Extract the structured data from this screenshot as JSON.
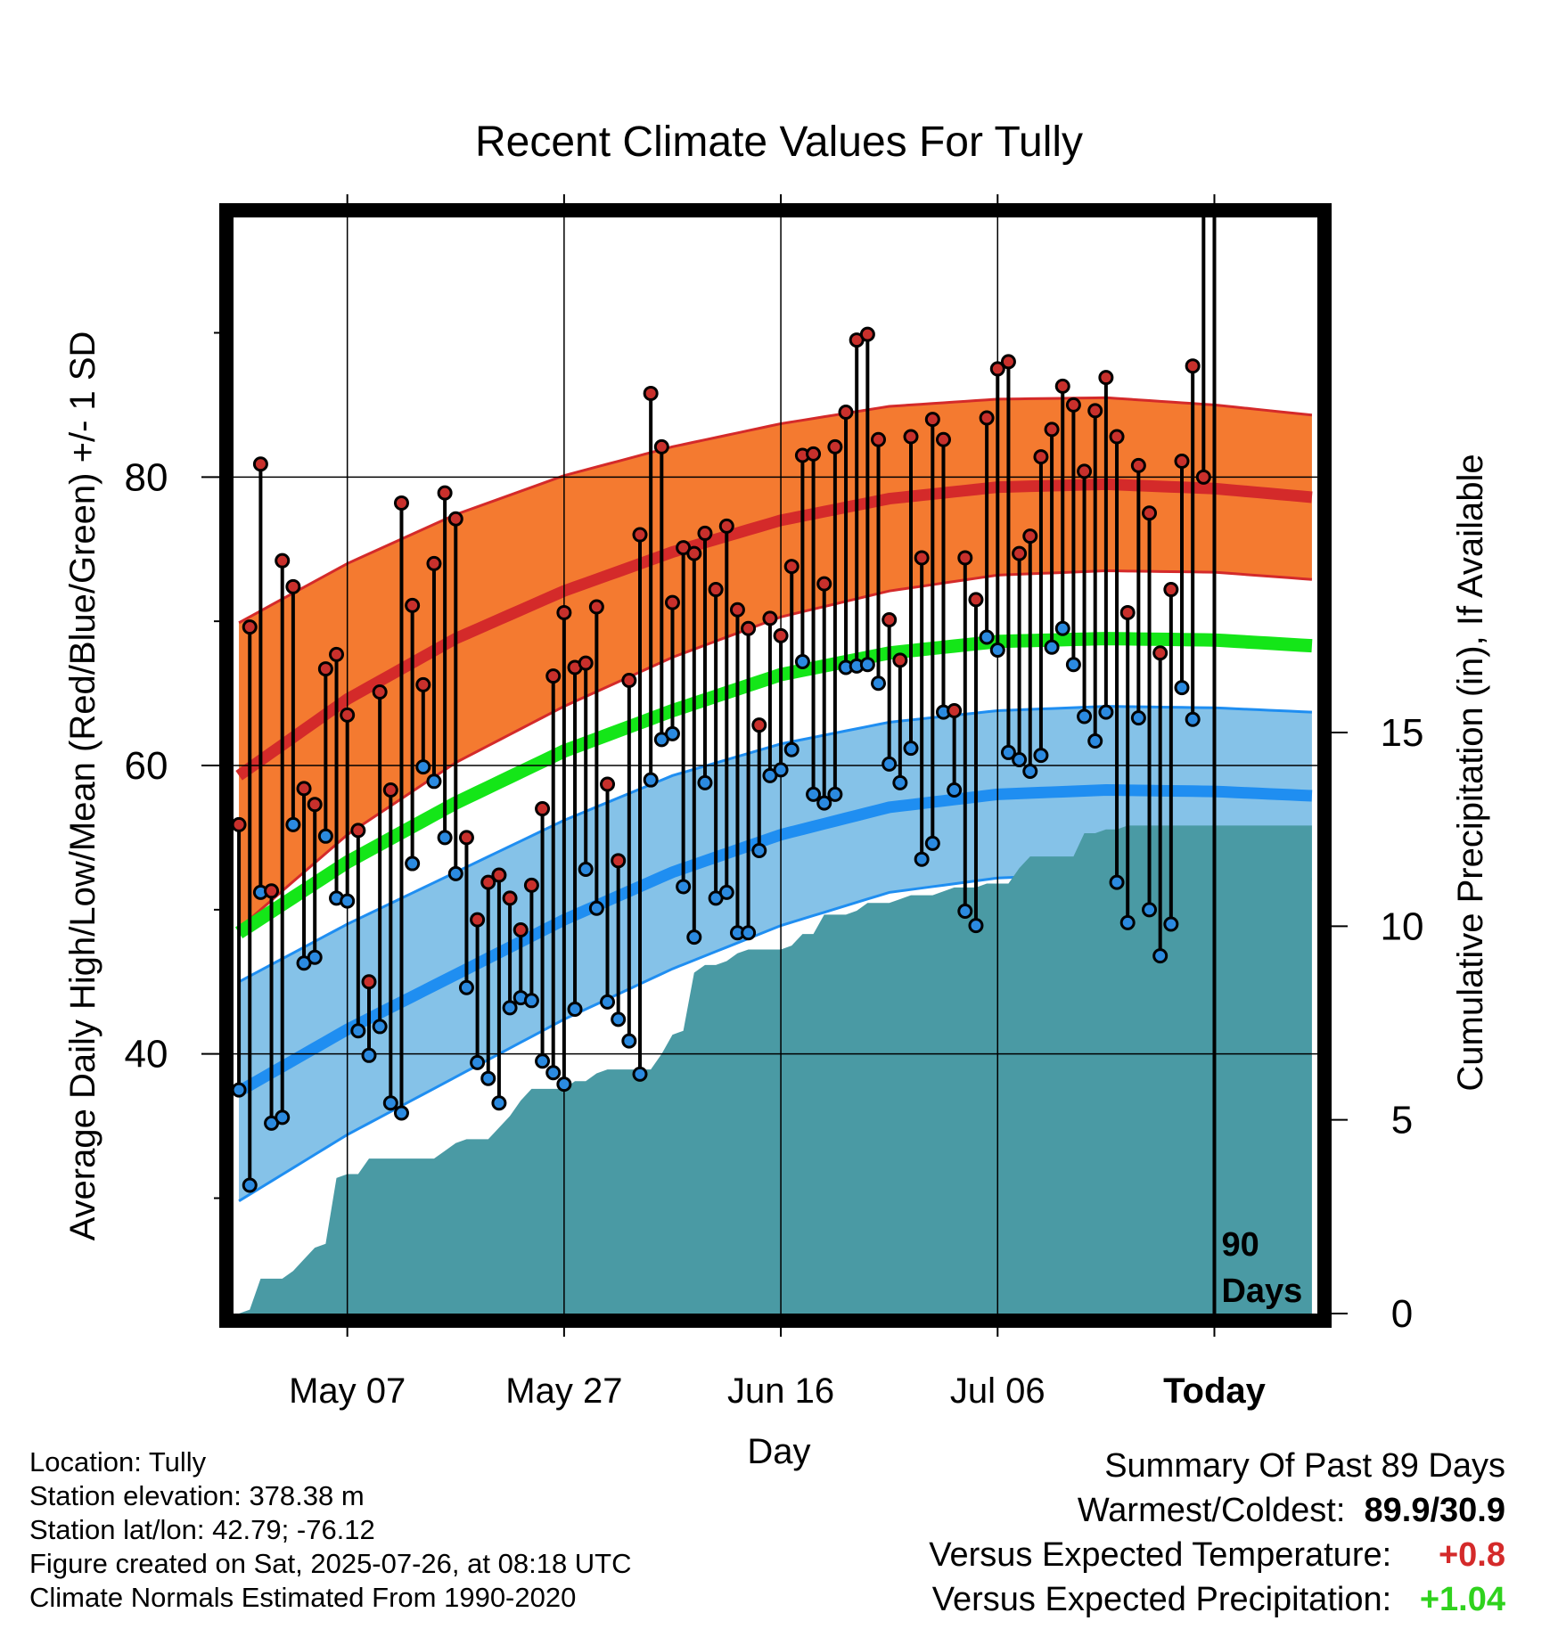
{
  "chart_data": {
    "type": "line",
    "title": "Recent Climate Values For Tully",
    "xlabel": "Day",
    "ylabel": "Average Daily High/Low/Mean (Red/Blue/Green) +/- 1 SD",
    "y2label": "Cumulative Precipitation (in), If Available",
    "xticks": [
      "May 07",
      "May 27",
      "Jun 16",
      "Jul 06",
      "Today"
    ],
    "xticks_day_offset": [
      10,
      30,
      50,
      70,
      90
    ],
    "x_range_days": [
      -0.5,
      99.5
    ],
    "ylim": [
      22,
      98
    ],
    "yticks": [
      40,
      60,
      80
    ],
    "y2lim": [
      0,
      28.3
    ],
    "y2ticks": [
      0,
      5,
      10,
      15
    ],
    "today_marker_label": "90\nDays",
    "normals": {
      "day": [
        0,
        10,
        20,
        30,
        40,
        50,
        60,
        70,
        80,
        90,
        99
      ],
      "high_mean": [
        59.3,
        64.6,
        68.8,
        72.1,
        74.8,
        77.0,
        78.5,
        79.3,
        79.5,
        79.2,
        78.6
      ],
      "high_sd": [
        10.6,
        9.4,
        8.6,
        8.0,
        7.3,
        6.7,
        6.4,
        6.1,
        6.0,
        5.8,
        5.7
      ],
      "low_mean": [
        37.4,
        41.7,
        45.5,
        49.3,
        52.6,
        55.2,
        57.1,
        58.0,
        58.3,
        58.2,
        57.9
      ],
      "low_sd": [
        7.6,
        7.3,
        7.1,
        6.9,
        6.7,
        6.3,
        5.9,
        5.8,
        5.8,
        5.8,
        5.8
      ],
      "avg_mean": [
        48.4,
        53.3,
        57.4,
        61.0,
        63.8,
        66.3,
        67.8,
        68.6,
        68.8,
        68.7,
        68.3
      ]
    },
    "observed_highs": [
      55.9,
      69.6,
      80.9,
      51.3,
      74.2,
      72.4,
      58.4,
      57.3,
      66.7,
      67.7,
      63.5,
      55.5,
      45.0,
      65.1,
      58.3,
      78.2,
      71.1,
      65.6,
      74.0,
      78.9,
      77.1,
      55.0,
      49.3,
      51.9,
      52.4,
      50.8,
      48.6,
      51.7,
      57.0,
      66.2,
      70.6,
      66.8,
      67.1,
      71.0,
      58.7,
      53.4,
      65.9,
      76.0,
      85.8,
      82.1,
      71.3,
      75.1,
      74.7,
      76.1,
      72.2,
      76.6,
      70.8,
      69.5,
      62.8,
      70.2,
      69.0,
      73.8,
      81.5,
      81.6,
      72.6,
      82.1,
      84.5,
      89.5,
      89.9,
      82.6,
      70.1,
      67.3,
      82.8,
      74.4,
      84.0,
      82.6,
      63.8,
      74.4,
      71.5,
      84.1,
      87.5,
      88.0,
      74.7,
      75.9,
      81.4,
      83.3,
      86.3,
      85.0,
      80.4,
      84.6,
      86.9,
      82.8,
      70.6,
      80.8,
      77.5,
      67.8,
      72.2,
      81.1,
      87.7,
      80.0
    ],
    "observed_lows": [
      37.5,
      30.9,
      51.2,
      35.2,
      35.6,
      55.9,
      46.3,
      46.7,
      55.1,
      50.8,
      50.6,
      41.6,
      39.9,
      41.9,
      36.6,
      35.9,
      53.2,
      59.9,
      58.9,
      55.0,
      52.5,
      44.6,
      39.4,
      38.3,
      36.6,
      43.2,
      43.9,
      43.7,
      39.5,
      38.7,
      37.9,
      43.1,
      52.8,
      50.1,
      43.6,
      42.4,
      40.9,
      38.6,
      59.0,
      61.8,
      62.2,
      51.6,
      48.1,
      58.8,
      50.8,
      51.2,
      48.4,
      48.4,
      54.1,
      59.3,
      59.7,
      61.1,
      67.2,
      58.0,
      57.4,
      58.0,
      66.8,
      66.9,
      67.0,
      65.7,
      60.1,
      58.8,
      61.2,
      53.5,
      54.6,
      63.7,
      58.3,
      49.9,
      48.9,
      68.9,
      68.0,
      60.9,
      60.4,
      59.6,
      60.7,
      68.2,
      69.5,
      67.0,
      63.4,
      61.7,
      63.7,
      51.9,
      49.1,
      63.3,
      50.0,
      46.8,
      49.0,
      65.4,
      63.2
    ],
    "precip_day": [
      0,
      1,
      2,
      3,
      4,
      5,
      6,
      7,
      8,
      9,
      10,
      11,
      12,
      13,
      14,
      15,
      16,
      17,
      18,
      19,
      20,
      21,
      22,
      23,
      24,
      25,
      26,
      27,
      28,
      29,
      30,
      31,
      32,
      33,
      34,
      35,
      36,
      37,
      38,
      39,
      40,
      41,
      42,
      43,
      44,
      45,
      46,
      47,
      48,
      49,
      50,
      51,
      52,
      53,
      54,
      55,
      56,
      57,
      58,
      59,
      60,
      61,
      62,
      63,
      64,
      65,
      66,
      67,
      68,
      69,
      70,
      71,
      72,
      73,
      74,
      75,
      76,
      77,
      78,
      79,
      80,
      81,
      82,
      83,
      84,
      85,
      86,
      87,
      88,
      89,
      90,
      91,
      92,
      93,
      94,
      95,
      96,
      97,
      98,
      99
    ],
    "precip_cum": [
      0,
      0.1,
      0.9,
      0.9,
      0.9,
      1.1,
      1.4,
      1.7,
      1.8,
      3.5,
      3.6,
      3.6,
      4.0,
      4.0,
      4.0,
      4.0,
      4.0,
      4.0,
      4.0,
      4.2,
      4.4,
      4.5,
      4.5,
      4.5,
      4.8,
      5.1,
      5.5,
      5.8,
      5.8,
      5.8,
      5.8,
      6.0,
      6.0,
      6.2,
      6.3,
      6.3,
      6.3,
      6.3,
      6.3,
      6.7,
      7.2,
      7.3,
      8.8,
      9.0,
      9.0,
      9.1,
      9.3,
      9.4,
      9.4,
      9.4,
      9.4,
      9.5,
      9.8,
      9.8,
      10.3,
      10.3,
      10.3,
      10.4,
      10.6,
      10.6,
      10.6,
      10.7,
      10.8,
      10.8,
      10.8,
      10.9,
      11.0,
      11.0,
      11.0,
      11.1,
      11.1,
      11.1,
      11.5,
      11.8,
      11.8,
      11.8,
      11.8,
      11.8,
      12.4,
      12.4,
      12.5,
      12.5,
      12.6,
      12.6,
      12.6,
      12.6,
      12.6,
      12.6,
      12.6,
      12.6,
      12.6,
      12.6,
      12.6,
      12.6,
      12.6,
      12.6,
      12.6,
      12.6,
      12.6,
      12.6
    ]
  },
  "info": {
    "location": "Location: Tully",
    "elevation": "Station elevation: 378.38 m",
    "latlon": "Station lat/lon: 42.79; -76.12",
    "created": "Figure created on Sat, 2025-07-26, at 08:18 UTC",
    "normals": "Climate Normals Estimated From 1990-2020"
  },
  "summary": {
    "title": "Summary Of Past 89 Days",
    "warmest_label": "Warmest/Coldest:",
    "warmest_value": "89.9/30.9",
    "temp_label": "Versus Expected Temperature:",
    "temp_value": "+0.8",
    "precip_label": "Versus Expected Precipitation:",
    "precip_value": "+1.04"
  },
  "colors": {
    "high_band": "#f47a30",
    "high_line": "#d42a2a",
    "low_band": "#85c2e8",
    "low_line": "#1f8ef1",
    "avg_line": "#14e618",
    "precip_fill": "#4a9aa4",
    "dot_high": "#c8302c",
    "dot_low": "#2b8ae0"
  }
}
